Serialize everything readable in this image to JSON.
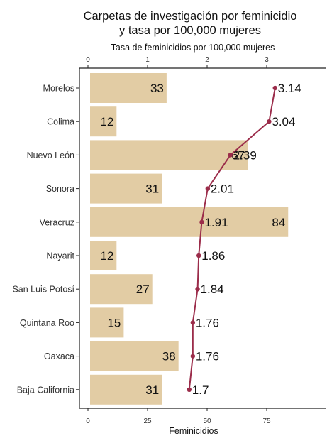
{
  "chart_data": {
    "type": "bar",
    "title_lines": [
      "Carpetas de investigación por feminicidio",
      "y tasa por 100,000 mujeres"
    ],
    "top_axis_label": "Tasa de feminicidios por 100,000 mujeres",
    "bottom_axis_label": "Feminicidios",
    "categories": [
      "Morelos",
      "Colima",
      "Nuevo León",
      "Sonora",
      "Veracruz",
      "Nayarit",
      "San Luis Potosí",
      "Quintana Roo",
      "Oaxaca",
      "Baja California"
    ],
    "series": [
      {
        "name": "Feminicidios",
        "type": "bar",
        "values": [
          33,
          12,
          67,
          31,
          84,
          12,
          27,
          15,
          38,
          31
        ],
        "labels": [
          "33",
          "12",
          "67",
          "31",
          "84",
          "12",
          "27",
          "15",
          "38",
          "31"
        ],
        "color": "#e2cca4"
      },
      {
        "name": "Tasa de feminicidios por 100,000 mujeres",
        "type": "line",
        "values": [
          3.14,
          3.04,
          2.39,
          2.01,
          1.91,
          1.86,
          1.84,
          1.76,
          1.76,
          1.7
        ],
        "labels": [
          "3.14",
          "3.04",
          "2.39",
          "2.01",
          "1.91",
          "1.86",
          "1.84",
          "1.76",
          "1.76",
          "1.7"
        ],
        "color": "#9b2c4a"
      }
    ],
    "bottom_axis": {
      "min": 0,
      "max": 100,
      "ticks": [
        0,
        25,
        50,
        75
      ],
      "tick_labels": [
        "0",
        "25",
        "50",
        "75"
      ]
    },
    "top_axis": {
      "min": 0,
      "max": 4,
      "ticks": [
        0,
        1,
        2,
        3
      ],
      "tick_labels": [
        "0",
        "1",
        "2",
        "3"
      ]
    },
    "grid": false,
    "legend": "none"
  }
}
